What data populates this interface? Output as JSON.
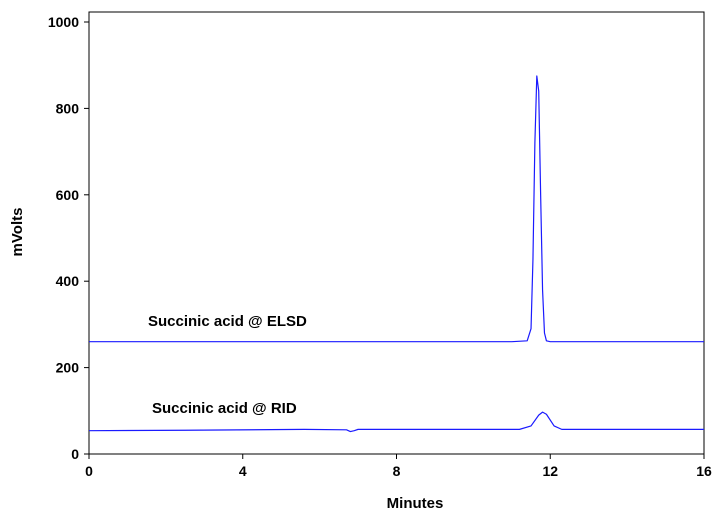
{
  "chart_data": {
    "type": "line",
    "title": "",
    "xlabel": "Minutes",
    "ylabel": "mVolts",
    "xlim": [
      0,
      16
    ],
    "ylim": [
      0,
      1000
    ],
    "x_ticks": [
      "0",
      "4",
      "8",
      "12",
      "16"
    ],
    "y_ticks": [
      "0",
      "200",
      "400",
      "600",
      "800",
      "1000"
    ],
    "grid": false,
    "legend": "none",
    "line_color": "#1a1aff",
    "series": [
      {
        "name": "Succinic acid @ ELSD",
        "x": [
          0,
          11.0,
          11.4,
          11.5,
          11.55,
          11.6,
          11.65,
          11.7,
          11.75,
          11.8,
          11.85,
          11.9,
          12.0,
          12.3,
          16
        ],
        "y": [
          260,
          260,
          262,
          290,
          450,
          720,
          875,
          840,
          600,
          380,
          280,
          262,
          260,
          260,
          260
        ]
      },
      {
        "name": "Succinic acid @ RID",
        "x": [
          0,
          2.5,
          5.6,
          6.7,
          6.8,
          6.9,
          7.0,
          11.2,
          11.5,
          11.7,
          11.8,
          11.9,
          12.1,
          12.3,
          16
        ],
        "y": [
          54,
          55,
          57,
          56,
          52,
          54,
          57,
          57,
          65,
          90,
          97,
          92,
          65,
          57,
          57
        ]
      }
    ]
  }
}
